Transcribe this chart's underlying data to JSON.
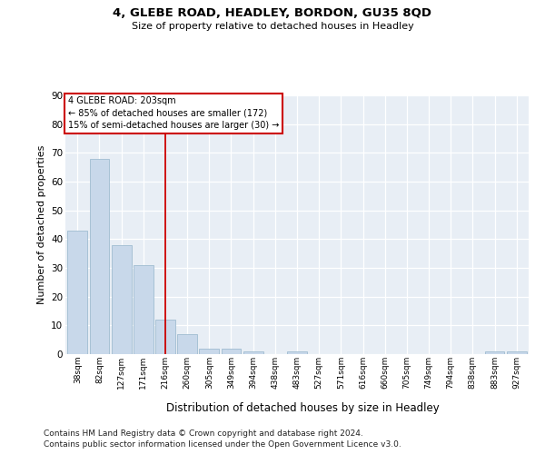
{
  "title1": "4, GLEBE ROAD, HEADLEY, BORDON, GU35 8QD",
  "title2": "Size of property relative to detached houses in Headley",
  "xlabel": "Distribution of detached houses by size in Headley",
  "ylabel": "Number of detached properties",
  "categories": [
    "38sqm",
    "82sqm",
    "127sqm",
    "171sqm",
    "216sqm",
    "260sqm",
    "305sqm",
    "349sqm",
    "394sqm",
    "438sqm",
    "483sqm",
    "527sqm",
    "571sqm",
    "616sqm",
    "660sqm",
    "705sqm",
    "749sqm",
    "794sqm",
    "838sqm",
    "883sqm",
    "927sqm"
  ],
  "values": [
    43,
    68,
    38,
    31,
    12,
    7,
    2,
    2,
    1,
    0,
    1,
    0,
    0,
    0,
    0,
    0,
    0,
    0,
    0,
    1,
    1
  ],
  "bar_color": "#c8d8ea",
  "bar_edge_color": "#a0bcd0",
  "vline_x": 4,
  "vline_color": "#cc0000",
  "annotation_line1": "4 GLEBE ROAD: 203sqm",
  "annotation_line2": "← 85% of detached houses are smaller (172)",
  "annotation_line3": "15% of semi-detached houses are larger (30) →",
  "annotation_box_facecolor": "#ffffff",
  "annotation_box_edgecolor": "#cc0000",
  "ylim": [
    0,
    90
  ],
  "yticks": [
    0,
    10,
    20,
    30,
    40,
    50,
    60,
    70,
    80,
    90
  ],
  "grid_color": "#d0d8e4",
  "bg_color": "#e8eef5",
  "footnote1": "Contains HM Land Registry data © Crown copyright and database right 2024.",
  "footnote2": "Contains public sector information licensed under the Open Government Licence v3.0."
}
